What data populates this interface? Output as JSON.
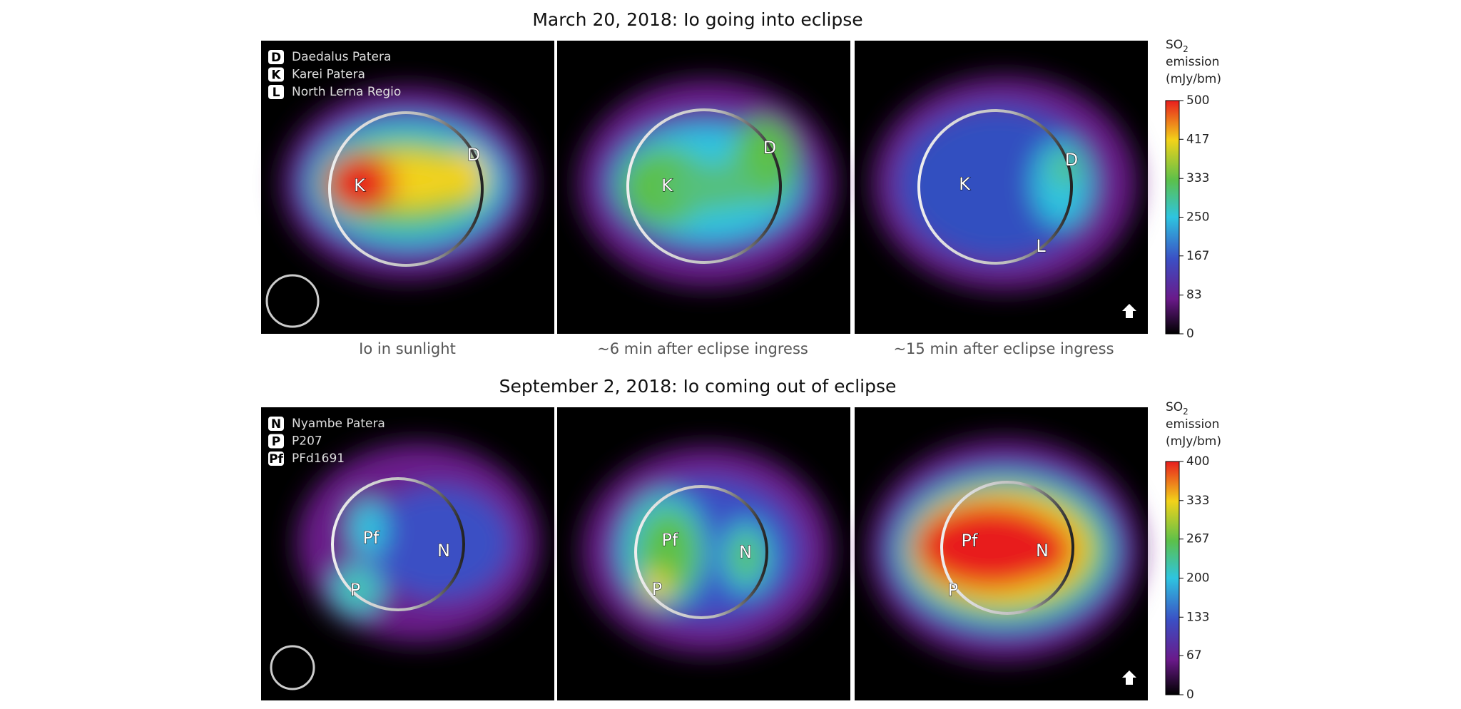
{
  "rows": [
    {
      "title": "March 20, 2018: Io going into eclipse",
      "legend": [
        {
          "key": "D",
          "label": "Daedalus Patera"
        },
        {
          "key": "K",
          "label": "Karei Patera"
        },
        {
          "key": "L",
          "label": "North Lerna Regio"
        }
      ],
      "panels": [
        {
          "caption": "Io in sunlight",
          "markers": [
            "K",
            "D"
          ]
        },
        {
          "caption": "~6 min after eclipse ingress",
          "markers": [
            "K",
            "D"
          ]
        },
        {
          "caption": "~15 min after eclipse ingress",
          "markers": [
            "K",
            "D",
            "L"
          ]
        }
      ],
      "colorbar": {
        "label": {
          "main": "SO",
          "sub": "2",
          "line2": "emission",
          "line3": "(mJy/bm)"
        },
        "ticks": [
          0,
          83,
          167,
          250,
          333,
          417,
          500
        ]
      }
    },
    {
      "title": "September 2, 2018: Io coming out of eclipse",
      "legend": [
        {
          "key": "N",
          "label": "Nyambe Patera"
        },
        {
          "key": "P",
          "label": "P207"
        },
        {
          "key": "Pf",
          "label": "PFd1691"
        }
      ],
      "panels": [
        {
          "markers": [
            "Pf",
            "N",
            "P"
          ]
        },
        {
          "markers": [
            "Pf",
            "N",
            "P"
          ]
        },
        {
          "markers": [
            "Pf",
            "N",
            "P"
          ]
        }
      ],
      "colorbar": {
        "label": {
          "main": "SO",
          "sub": "2",
          "line2": "emission",
          "line3": "(mJy/bm)"
        },
        "ticks": [
          0,
          67,
          133,
          200,
          267,
          333,
          400
        ]
      }
    }
  ]
}
